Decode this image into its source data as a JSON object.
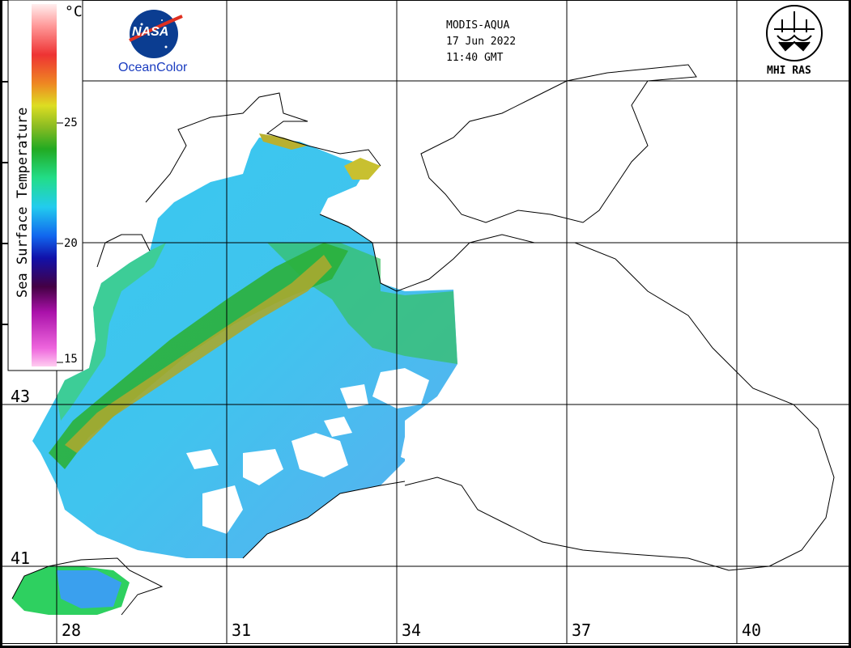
{
  "header": {
    "satellite": "MODIS-AQUA",
    "date": "17 Jun 2022",
    "time": "11:40 GMT"
  },
  "logos": {
    "nasa_badge": "NASA",
    "nasa_subtitle": "OceanColor",
    "mhi_label": "MHI RAS"
  },
  "colorbar": {
    "title": "Sea Surface Temperature",
    "unit": "°C",
    "ticks": [
      "25",
      "20",
      "15"
    ],
    "tick_values": [
      25,
      20,
      15
    ],
    "range": [
      14.5,
      30
    ],
    "colors": [
      "#ff99ee",
      "#cc33cc",
      "#660066",
      "#1a1acc",
      "#00ccff",
      "#20d8c0",
      "#2ab82a",
      "#c8c820",
      "#e07020",
      "#e03030",
      "#ffffff"
    ]
  },
  "axes": {
    "lon_labels": [
      "28",
      "31",
      "34",
      "37",
      "40"
    ],
    "lat_labels": [
      "43",
      "41"
    ]
  }
}
